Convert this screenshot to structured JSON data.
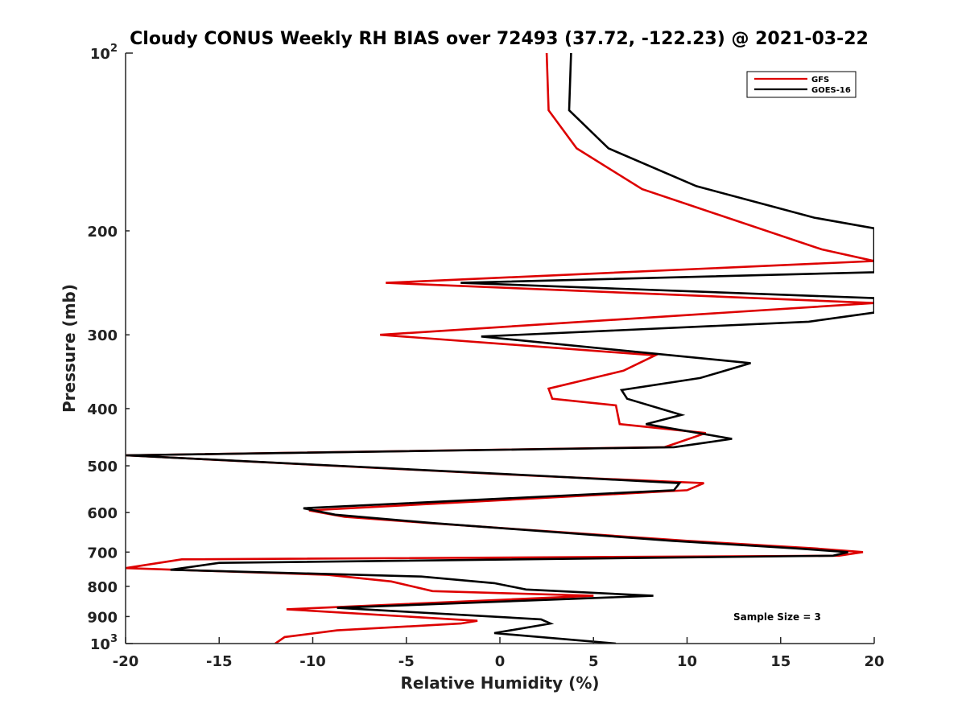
{
  "chart_data": {
    "type": "line",
    "title": "Cloudy CONUS Weekly RH BIAS over 72493 (37.72, -122.23) @ 2021-03-22",
    "xlabel": "Relative Humidity (%)",
    "ylabel": "Pressure (mb)",
    "xlim": [
      -20,
      20
    ],
    "ylim": [
      1000,
      100
    ],
    "y_scale": "log",
    "y_reversed": true,
    "grid": false,
    "legend_position": "top-right",
    "x_ticks": [
      -20,
      -15,
      -10,
      -5,
      0,
      5,
      10,
      15,
      20
    ],
    "x_tick_labels": [
      "-20",
      "-15",
      "-10",
      "-5",
      "0",
      "5",
      "10",
      "15",
      "20"
    ],
    "y_ticks": [
      100,
      200,
      300,
      400,
      500,
      600,
      700,
      800,
      900,
      1000
    ],
    "y_tick_labels": [
      {
        "base": "10",
        "exp": "2"
      },
      {
        "base": "200",
        "exp": ""
      },
      {
        "base": "300",
        "exp": ""
      },
      {
        "base": "400",
        "exp": ""
      },
      {
        "base": "500",
        "exp": ""
      },
      {
        "base": "600",
        "exp": ""
      },
      {
        "base": "700",
        "exp": ""
      },
      {
        "base": "800",
        "exp": ""
      },
      {
        "base": "900",
        "exp": ""
      },
      {
        "base": "10",
        "exp": "3"
      }
    ],
    "annotation": "Sample Size = 3",
    "series": [
      {
        "name": "GFS",
        "color": "#dd0000",
        "x": [
          2.5,
          2.6,
          4.1,
          7.6,
          17.2,
          20,
          -6.1,
          20,
          -6.4,
          8.3,
          6.6,
          2.6,
          2.8,
          6.2,
          6.4,
          11.0,
          8.8,
          -20,
          1.9,
          10.9,
          10.0,
          -10.2,
          -8.3,
          -3.8,
          10.0,
          16.8,
          19.4,
          18.1,
          -17.0,
          -20,
          -9.2,
          -5.8,
          -3.6,
          5.0,
          -11.4,
          -1.2,
          -2.1,
          -8.7,
          -11.5,
          -12.0
        ],
        "y": [
          100,
          125,
          145,
          170,
          215,
          225,
          245,
          265,
          300,
          325,
          345,
          370,
          385,
          395,
          425,
          440,
          465,
          480,
          520,
          535,
          550,
          595,
          610,
          625,
          670,
          690,
          700,
          710,
          720,
          745,
          765,
          785,
          815,
          830,
          875,
          915,
          925,
          950,
          975,
          1000
        ]
      },
      {
        "name": "GOES-16",
        "color": "#000000",
        "x": [
          3.8,
          3.7,
          5.8,
          10.5,
          16.8,
          20,
          20,
          -2.1,
          20,
          20,
          16.5,
          -1.0,
          13.4,
          10.7,
          6.5,
          6.8,
          9.7,
          7.8,
          12.4,
          9.3,
          -20,
          2.2,
          9.6,
          9.3,
          -10.5,
          -8.8,
          -3.6,
          9.2,
          15.8,
          18.6,
          17.8,
          -15.0,
          -17.6,
          -4.2,
          -0.3,
          1.4,
          8.2,
          -8.7,
          2.2,
          2.7,
          -0.3,
          6.2
        ],
        "y": [
          100,
          125,
          145,
          168,
          190,
          198,
          235,
          245,
          260,
          275,
          285,
          302,
          335,
          355,
          372,
          385,
          410,
          425,
          450,
          465,
          480,
          520,
          535,
          550,
          590,
          605,
          625,
          670,
          690,
          700,
          710,
          730,
          750,
          770,
          790,
          810,
          830,
          870,
          910,
          925,
          960,
          1000
        ]
      }
    ]
  }
}
